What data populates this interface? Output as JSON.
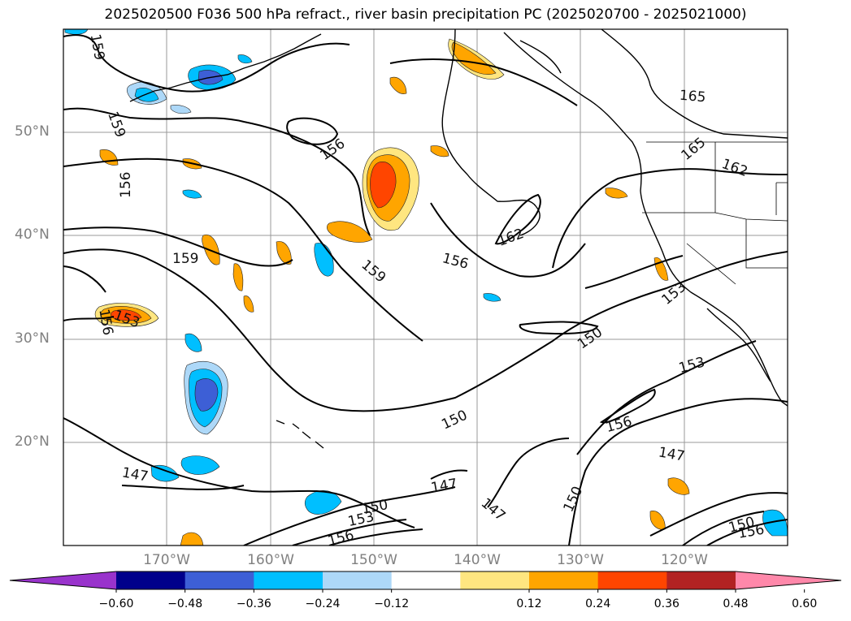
{
  "title": "2025020500 F036 500 hPa refract., river basin precipitation PC (2025020700 - 2025021000)",
  "lat_labels": [
    "50°N",
    "40°N",
    "30°N",
    "20°N"
  ],
  "lon_labels": [
    "170°W",
    "160°W",
    "150°W",
    "140°W",
    "130°W",
    "120°W"
  ],
  "colorbar": {
    "ticks": [
      "−0.60",
      "−0.48",
      "−0.36",
      "−0.24",
      "−0.12",
      "0.12",
      "0.24",
      "0.36",
      "0.48",
      "0.60"
    ],
    "colors": [
      "#9933cc",
      "#00008b",
      "#3d5fd6",
      "#00bfff",
      "#add8f8",
      "#ffffff",
      "#ffe680",
      "#ffa500",
      "#ff4500",
      "#b22222",
      "#ff88aa"
    ]
  },
  "contour_labels": [
    "159",
    "159",
    "156",
    "156",
    "159",
    "153",
    "156",
    "159",
    "156",
    "162",
    "165",
    "165",
    "162",
    "153",
    "150",
    "153",
    "156",
    "150",
    "147",
    "147",
    "147",
    "150",
    "153",
    "156",
    "150",
    "147",
    "150",
    "156"
  ]
}
